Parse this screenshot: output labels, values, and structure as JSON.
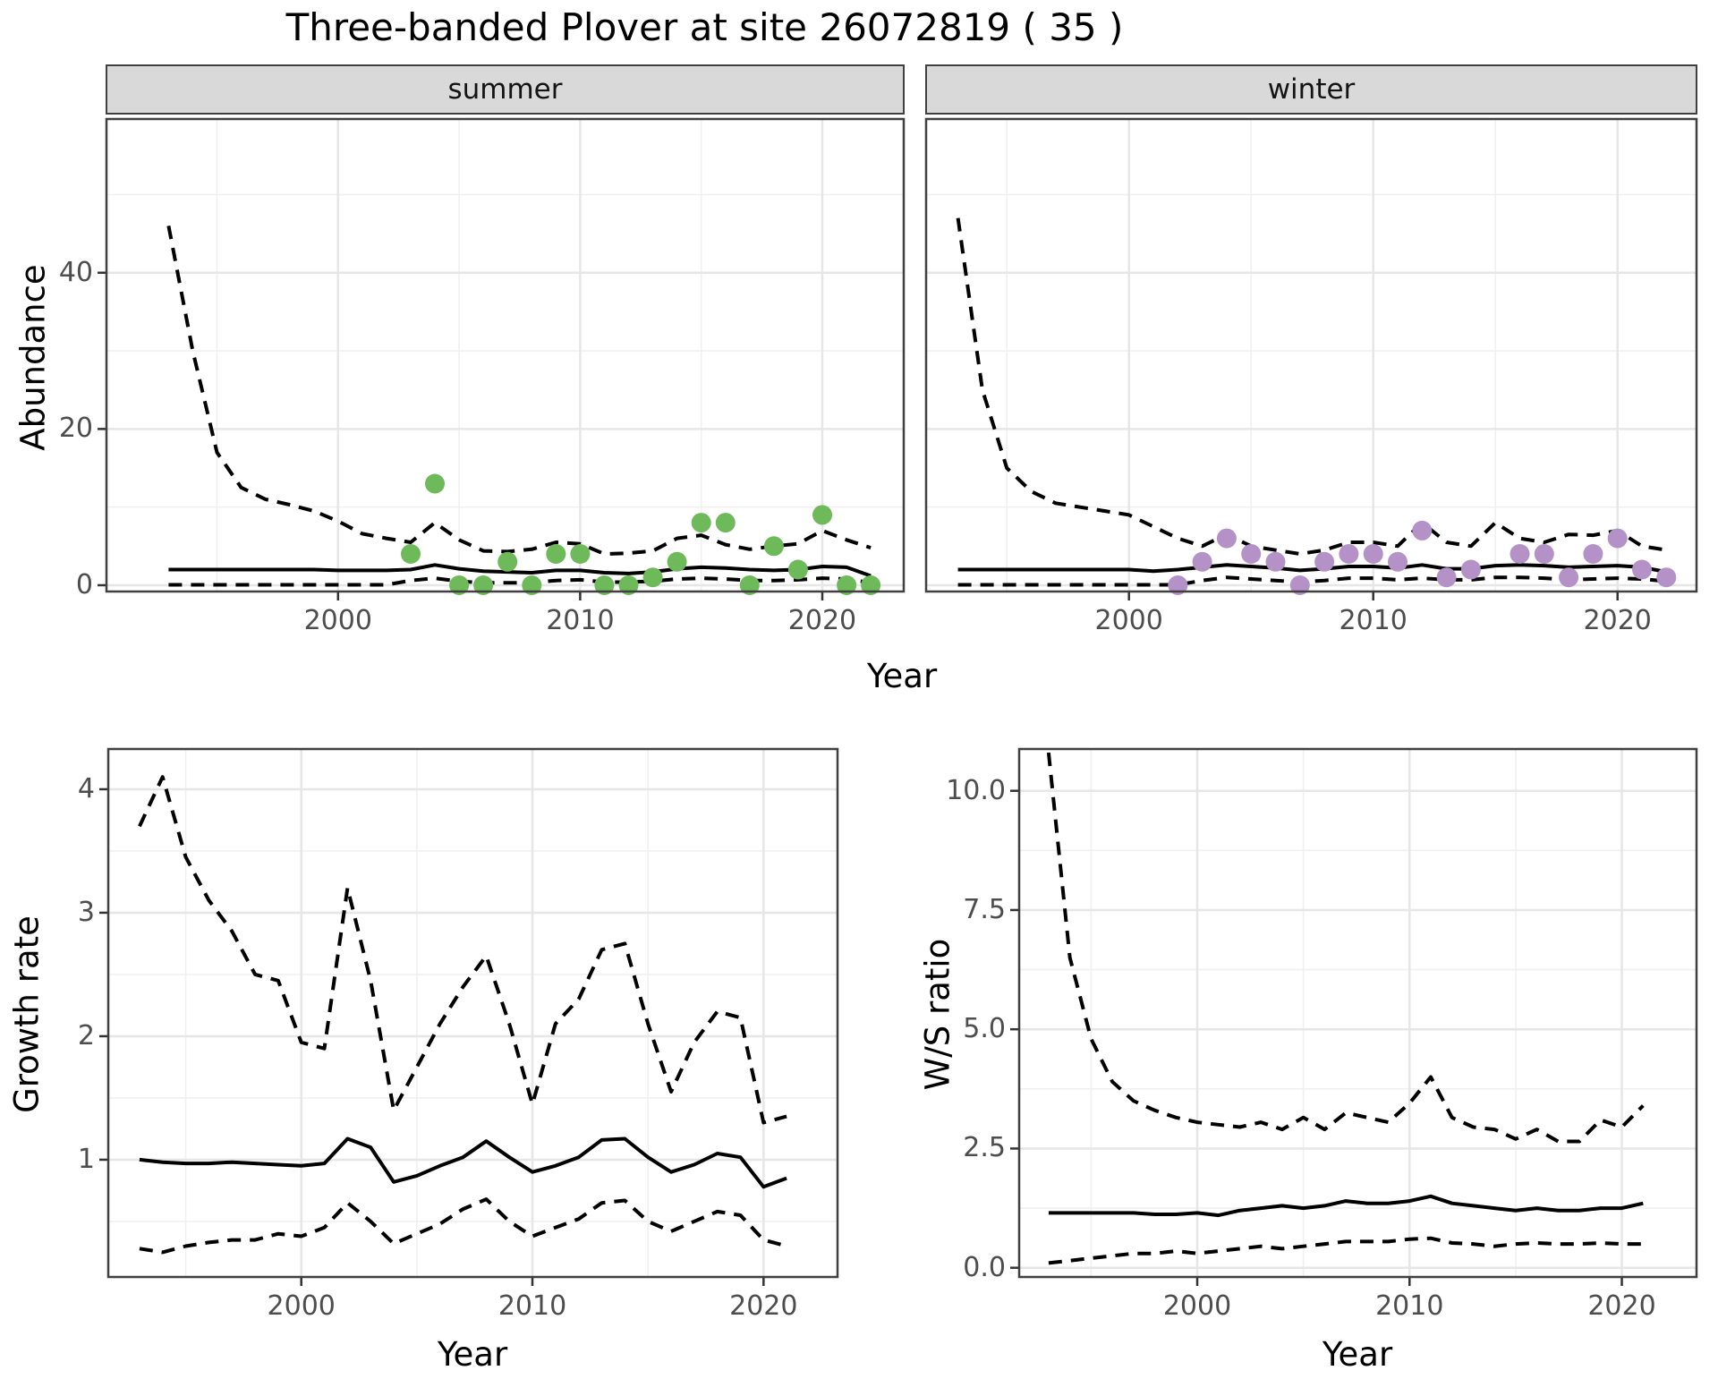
{
  "title": "Three-banded Plover at site 26072819 ( 35 )",
  "facets": [
    "summer",
    "winter"
  ],
  "colors": {
    "summer_point": "#6eb95a",
    "winter_point": "#b492c8",
    "line": "#000000",
    "grid_major": "#e6e6e6",
    "grid_minor": "#f0f0f0",
    "strip_bg": "#d9d9d9",
    "panel_border": "#404040",
    "axis_text": "#4d4d4d",
    "tick_mark": "#333333"
  },
  "chart_data": [
    {
      "id": "summer",
      "type": "line",
      "facet": "summer",
      "xlabel": "Year",
      "ylabel": "Abundance",
      "xlim": [
        1990.4,
        2023.4
      ],
      "ylim": [
        -0.92,
        59.79
      ],
      "x_major_ticks": [
        2000,
        2010,
        2020
      ],
      "x_minor_ticks": [
        1995,
        2005,
        2015
      ],
      "y_major_ticks": [
        0,
        20,
        40
      ],
      "y_minor_ticks": [
        10,
        30,
        50
      ],
      "x_tick_labels": [
        "2000",
        "2010",
        "2020"
      ],
      "y_tick_labels": [
        "0",
        "20",
        "40"
      ],
      "show_y_tick_labels": true,
      "grid": true,
      "legend": "none",
      "series": [
        {
          "name": "upper-ci",
          "style": "dashed",
          "x_start": 1993,
          "values": [
            46,
            30,
            17,
            12.5,
            11,
            10.3,
            9.5,
            8.2,
            6.6,
            6.0,
            5.5,
            8.0,
            5.8,
            4.4,
            4.3,
            4.6,
            5.5,
            5.3,
            4.0,
            4.1,
            4.4,
            6.0,
            6.4,
            5.2,
            4.6,
            5.0,
            5.3,
            7.0,
            5.8,
            4.8
          ]
        },
        {
          "name": "median",
          "style": "solid",
          "x_start": 1993,
          "values": [
            2.0,
            2.0,
            2.0,
            2.0,
            2.0,
            2.0,
            2.0,
            1.9,
            1.9,
            1.9,
            2.0,
            2.6,
            2.1,
            1.8,
            1.7,
            1.6,
            1.9,
            1.9,
            1.6,
            1.5,
            1.7,
            2.1,
            2.3,
            2.2,
            2.0,
            1.9,
            2.0,
            2.4,
            2.3,
            1.2
          ]
        },
        {
          "name": "lower-ci",
          "style": "dashed",
          "x_start": 1993,
          "values": [
            0.05,
            0.05,
            0.05,
            0.05,
            0.05,
            0.05,
            0.05,
            0.05,
            0.05,
            0.05,
            0.6,
            0.9,
            0.5,
            0.3,
            0.3,
            0.3,
            0.6,
            0.7,
            0.4,
            0.4,
            0.5,
            0.8,
            0.9,
            0.8,
            0.6,
            0.6,
            0.7,
            0.9,
            0.8,
            0.3
          ]
        }
      ],
      "points": {
        "color_key": "summer_point",
        "years": [
          2003,
          2004,
          2005,
          2006,
          2007,
          2008,
          2009,
          2010,
          2011,
          2012,
          2013,
          2014,
          2015,
          2016,
          2017,
          2018,
          2019,
          2020,
          2021,
          2022
        ],
        "values": [
          4,
          13,
          0,
          0,
          3,
          0,
          4,
          4,
          0,
          0,
          1,
          3,
          8,
          8,
          0,
          5,
          2,
          9,
          0,
          0
        ]
      }
    },
    {
      "id": "winter",
      "type": "line",
      "facet": "winter",
      "xlabel": "Year",
      "ylabel": "",
      "xlim": [
        1991.66,
        2023.27
      ],
      "ylim": [
        -0.92,
        59.79
      ],
      "x_major_ticks": [
        2000,
        2010,
        2020
      ],
      "x_minor_ticks": [
        1995,
        2005,
        2015
      ],
      "y_major_ticks": [
        0,
        20,
        40
      ],
      "y_minor_ticks": [
        10,
        30,
        50
      ],
      "x_tick_labels": [
        "2000",
        "2010",
        "2020"
      ],
      "y_tick_labels": [],
      "show_y_tick_labels": false,
      "grid": true,
      "legend": "none",
      "series": [
        {
          "name": "upper-ci",
          "style": "dashed",
          "x_start": 1993,
          "values": [
            47,
            25,
            15,
            12,
            10.5,
            10,
            9.5,
            9,
            7.5,
            6,
            5,
            6.5,
            5,
            4.5,
            4,
            4.5,
            5.5,
            5.5,
            5,
            8,
            5.5,
            5,
            8,
            6,
            5.5,
            6.5,
            6.4,
            7,
            5,
            4.5
          ]
        },
        {
          "name": "median",
          "style": "solid",
          "x_start": 1993,
          "values": [
            2.0,
            2.0,
            2.0,
            2.0,
            2.0,
            2.0,
            2.0,
            2.0,
            1.8,
            2.0,
            2.3,
            2.6,
            2.4,
            2.2,
            1.9,
            2.1,
            2.4,
            2.4,
            2.2,
            2.6,
            2.1,
            2.1,
            2.5,
            2.6,
            2.5,
            2.3,
            2.4,
            2.5,
            2.3,
            1.7
          ]
        },
        {
          "name": "lower-ci",
          "style": "dashed",
          "x_start": 1993,
          "values": [
            0.05,
            0.05,
            0.05,
            0.05,
            0.05,
            0.05,
            0.05,
            0.05,
            0.05,
            0.05,
            0.6,
            1.0,
            0.8,
            0.6,
            0.4,
            0.6,
            0.9,
            0.9,
            0.7,
            0.9,
            0.7,
            0.7,
            1.0,
            1.0,
            0.9,
            0.7,
            0.8,
            0.9,
            0.8,
            0.5
          ]
        }
      ],
      "points": {
        "color_key": "winter_point",
        "years": [
          2002,
          2003,
          2004,
          2005,
          2006,
          2007,
          2008,
          2009,
          2010,
          2011,
          2012,
          2013,
          2014,
          2016,
          2017,
          2018,
          2019,
          2020,
          2021,
          2022
        ],
        "values": [
          0,
          3,
          6,
          4,
          3,
          0,
          3,
          4,
          4,
          3,
          7,
          1,
          2,
          4,
          4,
          1,
          4,
          6,
          2,
          1
        ]
      }
    },
    {
      "id": "growth",
      "type": "line",
      "facet": null,
      "xlabel": "Year",
      "ylabel": "Growth rate",
      "xlim": [
        1991.61,
        2023.24
      ],
      "ylim": [
        0.043,
        4.333
      ],
      "x_major_ticks": [
        2000,
        2010,
        2020
      ],
      "x_minor_ticks": [
        1995,
        2005,
        2015
      ],
      "y_major_ticks": [
        1,
        2,
        3,
        4
      ],
      "y_minor_ticks": [
        0.5,
        1.5,
        2.5,
        3.5
      ],
      "x_tick_labels": [
        "2000",
        "2010",
        "2020"
      ],
      "y_tick_labels": [
        "1",
        "2",
        "3",
        "4"
      ],
      "show_y_tick_labels": true,
      "grid": true,
      "legend": "none",
      "series": [
        {
          "name": "upper-ci",
          "style": "dashed",
          "x_start": 1993,
          "values": [
            3.7,
            4.1,
            3.45,
            3.1,
            2.85,
            2.5,
            2.45,
            1.95,
            1.9,
            3.2,
            2.45,
            1.4,
            1.75,
            2.1,
            2.4,
            2.65,
            2.1,
            1.45,
            2.1,
            2.3,
            2.7,
            2.75,
            2.1,
            1.55,
            1.95,
            2.2,
            2.15,
            1.3,
            1.35
          ]
        },
        {
          "name": "median",
          "style": "solid",
          "x_start": 1993,
          "values": [
            1.0,
            0.98,
            0.97,
            0.97,
            0.98,
            0.97,
            0.96,
            0.95,
            0.97,
            1.17,
            1.1,
            0.82,
            0.87,
            0.95,
            1.02,
            1.15,
            1.02,
            0.9,
            0.95,
            1.02,
            1.16,
            1.17,
            1.02,
            0.9,
            0.96,
            1.05,
            1.02,
            0.78,
            0.85
          ]
        },
        {
          "name": "lower-ci",
          "style": "dashed",
          "x_start": 1993,
          "values": [
            0.28,
            0.25,
            0.3,
            0.33,
            0.35,
            0.35,
            0.4,
            0.38,
            0.45,
            0.65,
            0.5,
            0.32,
            0.4,
            0.48,
            0.6,
            0.68,
            0.5,
            0.38,
            0.45,
            0.52,
            0.65,
            0.67,
            0.5,
            0.42,
            0.5,
            0.58,
            0.55,
            0.35,
            0.3
          ]
        }
      ],
      "points": null
    },
    {
      "id": "ws",
      "type": "line",
      "facet": null,
      "xlabel": "Year",
      "ylabel": "W/S ratio",
      "xlim": [
        1991.57,
        2023.56
      ],
      "ylim": [
        -0.212,
        10.895
      ],
      "x_major_ticks": [
        2000,
        2010,
        2020
      ],
      "x_minor_ticks": [
        1995,
        2005,
        2015
      ],
      "y_major_ticks": [
        0,
        2.5,
        5,
        7.5,
        10
      ],
      "y_minor_ticks": [
        1.25,
        3.75,
        6.25,
        8.75
      ],
      "x_tick_labels": [
        "2000",
        "2010",
        "2020"
      ],
      "y_tick_labels": [
        "0.0",
        "2.5",
        "5.0",
        "7.5",
        "10.0"
      ],
      "show_y_tick_labels": true,
      "grid": true,
      "legend": "none",
      "series": [
        {
          "name": "upper-ci",
          "style": "dashed",
          "x_start": 1993,
          "values": [
            10.8,
            6.5,
            4.8,
            3.9,
            3.5,
            3.3,
            3.15,
            3.05,
            3.0,
            2.95,
            3.05,
            2.9,
            3.15,
            2.9,
            3.25,
            3.15,
            3.05,
            3.45,
            4.0,
            3.15,
            2.95,
            2.9,
            2.7,
            2.9,
            2.65,
            2.65,
            3.1,
            2.95,
            3.4
          ]
        },
        {
          "name": "median",
          "style": "solid",
          "x_start": 1993,
          "values": [
            1.15,
            1.15,
            1.15,
            1.15,
            1.15,
            1.12,
            1.12,
            1.15,
            1.1,
            1.2,
            1.25,
            1.3,
            1.25,
            1.3,
            1.4,
            1.35,
            1.35,
            1.4,
            1.5,
            1.35,
            1.3,
            1.25,
            1.2,
            1.25,
            1.2,
            1.2,
            1.25,
            1.25,
            1.35
          ]
        },
        {
          "name": "lower-ci",
          "style": "dashed",
          "x_start": 1993,
          "values": [
            0.1,
            0.15,
            0.2,
            0.25,
            0.3,
            0.3,
            0.35,
            0.3,
            0.35,
            0.4,
            0.45,
            0.4,
            0.45,
            0.5,
            0.55,
            0.55,
            0.55,
            0.6,
            0.62,
            0.52,
            0.5,
            0.45,
            0.5,
            0.52,
            0.5,
            0.5,
            0.52,
            0.5,
            0.5
          ]
        }
      ],
      "points": null
    }
  ]
}
